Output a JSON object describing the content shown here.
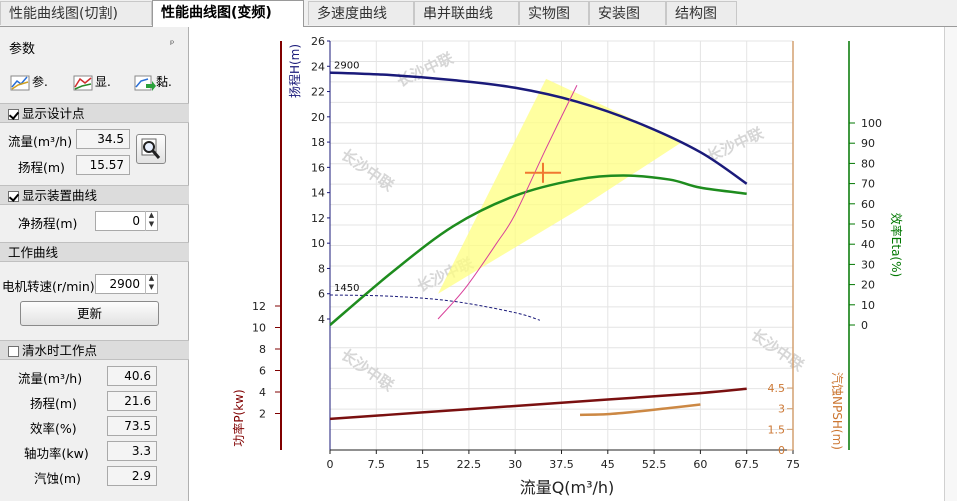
{
  "tabs": [
    "性能曲线图(切割)",
    "性能曲线图(变频)",
    "多速度曲线",
    "串并联曲线",
    "实物图",
    "安装图",
    "结构图"
  ],
  "panel": {
    "title": "参数",
    "pin_glyph": "ᵖ",
    "tools": [
      "参.",
      "显.",
      "黏."
    ],
    "design_point": {
      "label": "显示设计点",
      "checked": true,
      "flow_label": "流量(m³/h)",
      "flow": "34.5",
      "head_label": "扬程(m)",
      "head": "15.57"
    },
    "system_curve": {
      "label": "显示装置曲线",
      "checked": true,
      "static_head_label": "净扬程(m)",
      "static_head": "0"
    },
    "working_curve": {
      "label": "工作曲线",
      "speed_label": "电机转速(r/min)",
      "speed": "2900",
      "update_button": "更新"
    },
    "water_point": {
      "label": "清水时工作点",
      "checked": false,
      "rows": [
        {
          "label": "流量(m³/h)",
          "value": "40.6"
        },
        {
          "label": "扬程(m)",
          "value": "21.6"
        },
        {
          "label": "效率(%)",
          "value": "73.5"
        },
        {
          "label": "轴功率(kw)",
          "value": "3.3"
        },
        {
          "label": "汽蚀(m)",
          "value": "2.9"
        }
      ]
    }
  },
  "chart_data": {
    "type": "line",
    "xlabel": "流量Q(m³/h)",
    "xlim": [
      0,
      75
    ],
    "xticks": [
      "0",
      "7.5",
      "15",
      "22.5",
      "30",
      "37.5",
      "45",
      "52.5",
      "60",
      "67.5",
      "75"
    ],
    "axes": {
      "head": {
        "label": "扬程H(m)",
        "ylim": [
          4,
          26
        ],
        "ticks": [
          "4",
          "6",
          "8",
          "10",
          "12",
          "14",
          "16",
          "18",
          "20",
          "22",
          "24",
          "26"
        ],
        "color": "#800000"
      },
      "power": {
        "label": "功率P(kw)",
        "ylim": [
          0,
          12
        ],
        "ticks": [
          "2",
          "4",
          "6",
          "8",
          "10",
          "12"
        ],
        "color": "#800000"
      },
      "efficiency": {
        "label": "效率Eta(%)",
        "ylim": [
          0,
          100
        ],
        "ticks": [
          "0",
          "10",
          "20",
          "30",
          "40",
          "50",
          "60",
          "70",
          "80",
          "90",
          "100"
        ],
        "color": "#007700"
      },
      "npsh": {
        "label": "汽蚀NPSH(m)",
        "ylim": [
          0,
          4.5
        ],
        "ticks": [
          "0",
          "1.5",
          "3",
          "4.5"
        ],
        "color": "#cc7733"
      }
    },
    "series": [
      {
        "name": "2900",
        "axis": "head",
        "color": "#1a1a7a",
        "x": [
          0,
          10,
          20,
          30,
          40,
          50,
          60,
          67.5
        ],
        "y": [
          23.5,
          23.3,
          22.9,
          22.3,
          21.2,
          19.5,
          17.2,
          14.7
        ]
      },
      {
        "name": "1450",
        "axis": "head",
        "color": "#1a1a7a",
        "x": [
          0,
          10,
          20,
          30,
          34
        ],
        "y": [
          5.9,
          5.8,
          5.4,
          4.5,
          3.9
        ]
      },
      {
        "axis": "efficiency",
        "color": "#1e8c1e",
        "x": [
          0,
          10,
          20,
          30,
          40,
          47.5,
          55,
          60,
          67.5
        ],
        "y": [
          0,
          26,
          49,
          64,
          72,
          74,
          72,
          68,
          65
        ]
      },
      {
        "axis": "power",
        "color": "#7a1010",
        "x": [
          0,
          15,
          30,
          45,
          60,
          67.5
        ],
        "y": [
          1.5,
          2.1,
          2.7,
          3.3,
          3.9,
          4.3
        ]
      },
      {
        "axis": "npsh",
        "color": "#cc8844",
        "x": [
          40.5,
          45,
          50,
          55,
          60
        ],
        "y": [
          2.55,
          2.6,
          2.8,
          3.05,
          3.3
        ]
      },
      {
        "axis": "head",
        "color": "#d8409a",
        "x": [
          17.5,
          22,
          27,
          30,
          35,
          40
        ],
        "y": [
          4,
          6.5,
          10,
          12.3,
          17.5,
          22.5
        ]
      }
    ],
    "operating_region": {
      "axis": "head",
      "x": [
        17.5,
        35,
        57,
        40
      ],
      "y": [
        6,
        23,
        18,
        12.6
      ]
    },
    "design_point": {
      "x": 34.5,
      "y": 15.57,
      "axis": "head"
    },
    "watermark": "长沙中联"
  }
}
